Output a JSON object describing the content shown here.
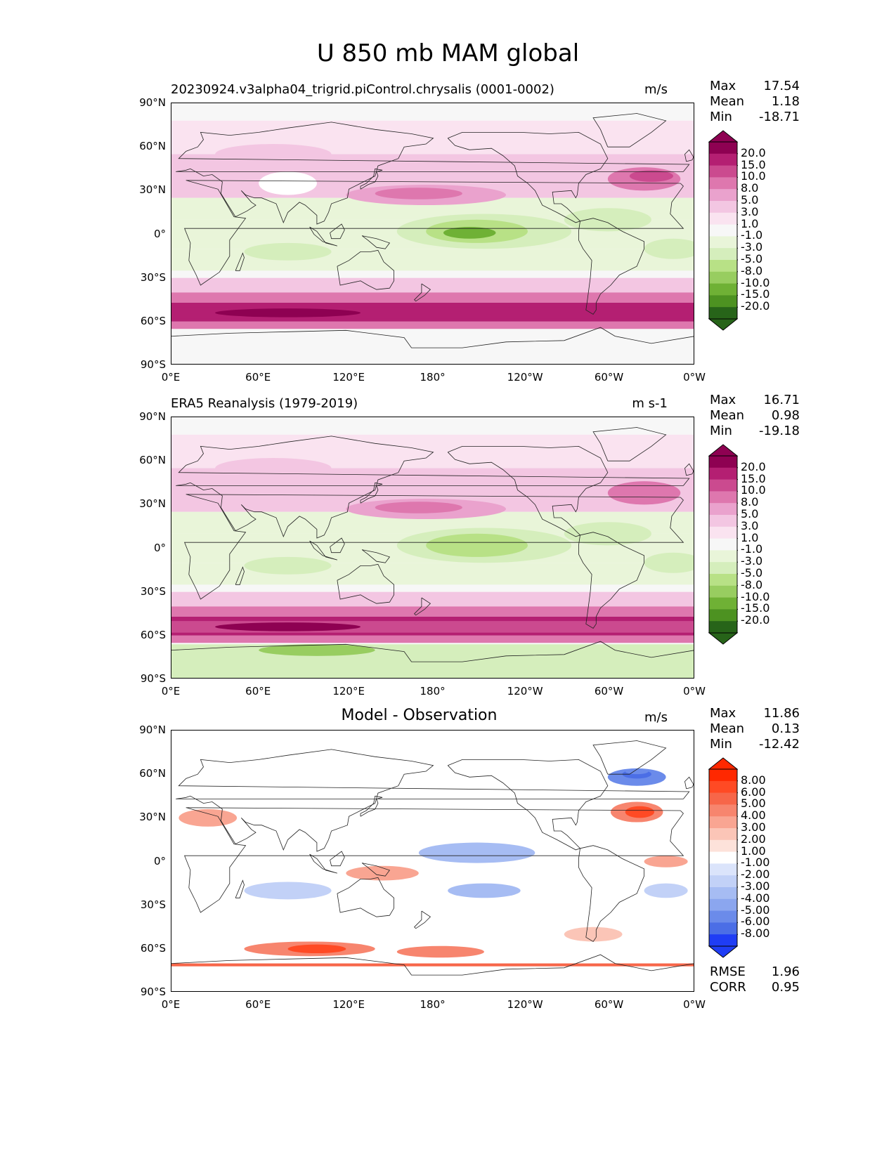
{
  "figure_title": "U 850 mb MAM global",
  "lon_ticks": [
    "0°E",
    "60°E",
    "120°E",
    "180°",
    "120°W",
    "60°W",
    "0°W"
  ],
  "lat_ticks": [
    "90°N",
    "60°N",
    "30°N",
    "0°",
    "30°S",
    "60°S",
    "90°S"
  ],
  "panels": [
    {
      "title": "20230924.v3alpha04_trigrid.piControl.chrysalis (0001-0002)",
      "units": "m/s",
      "stats": [
        {
          "label": "Max",
          "value": "17.54"
        },
        {
          "label": "Mean",
          "value": "1.18"
        },
        {
          "label": "Min",
          "value": "-18.71"
        }
      ],
      "colorbar": [
        "20.0",
        "15.0",
        "10.0",
        "8.0",
        "5.0",
        "3.0",
        "1.0",
        "-1.0",
        "-3.0",
        "-5.0",
        "-8.0",
        "-10.0",
        "-15.0",
        "-20.0"
      ]
    },
    {
      "title": "ERA5 Reanalysis (1979-2019)",
      "units": "m s-1",
      "stats": [
        {
          "label": "Max",
          "value": "16.71"
        },
        {
          "label": "Mean",
          "value": "0.98"
        },
        {
          "label": "Min",
          "value": "-19.18"
        }
      ],
      "colorbar": [
        "20.0",
        "15.0",
        "10.0",
        "8.0",
        "5.0",
        "3.0",
        "1.0",
        "-1.0",
        "-3.0",
        "-5.0",
        "-8.0",
        "-10.0",
        "-15.0",
        "-20.0"
      ]
    },
    {
      "title": "Model - Observation",
      "units": "m/s",
      "stats": [
        {
          "label": "Max",
          "value": "11.86"
        },
        {
          "label": "Mean",
          "value": "0.13"
        },
        {
          "label": "Min",
          "value": "-12.42"
        }
      ],
      "colorbar": [
        "8.00",
        "6.00",
        "5.00",
        "4.00",
        "3.00",
        "2.00",
        "1.00",
        "-1.00",
        "-2.00",
        "-3.00",
        "-4.00",
        "-5.00",
        "-6.00",
        "-8.00"
      ],
      "metrics": [
        {
          "label": "RMSE",
          "value": "1.96"
        },
        {
          "label": "CORR",
          "value": "0.95"
        }
      ]
    }
  ],
  "colors": {
    "pink_green": [
      "#8e0152",
      "#b41f72",
      "#cb4a8f",
      "#de77ae",
      "#eaa2cd",
      "#f3c6e2",
      "#fae3f0",
      "#f7f7f7",
      "#e9f5d9",
      "#d5eebc",
      "#b8e186",
      "#98cd60",
      "#6fb135",
      "#4d9221",
      "#276419"
    ],
    "blue_red": [
      "#ff2800",
      "#ff4a24",
      "#f76649",
      "#f7856e",
      "#f9a592",
      "#fbc5b7",
      "#fde2da",
      "#ffffff",
      "#dbe4fb",
      "#c2d1f7",
      "#a6bcf3",
      "#8ba6ef",
      "#6b8bea",
      "#4b6ee6",
      "#1f3df5"
    ]
  }
}
